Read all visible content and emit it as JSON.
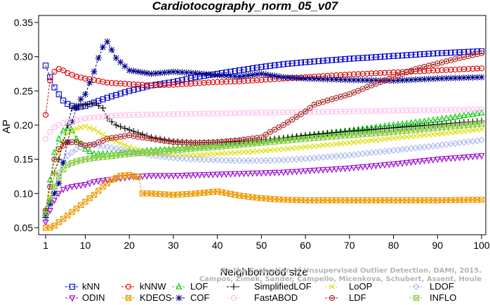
{
  "chart_data": {
    "type": "line",
    "title": "Cardiotocography_norm_05_v07",
    "xlabel": "Neighborhood size",
    "ylabel": "AP",
    "xlim": [
      1,
      100
    ],
    "ylim": [
      0.05,
      0.35
    ],
    "xticks": [
      1,
      10,
      20,
      30,
      40,
      50,
      60,
      70,
      80,
      90,
      100
    ],
    "yticks": [
      0.05,
      0.1,
      0.15,
      0.2,
      0.25,
      0.3,
      0.35
    ],
    "legend_position": "bottom",
    "series": [
      {
        "name": "kNN",
        "color": "#0000cc",
        "marker": "square",
        "line": "dashed",
        "points": [
          [
            1,
            0.287
          ],
          [
            2,
            0.27
          ],
          [
            3,
            0.255
          ],
          [
            4,
            0.245
          ],
          [
            5,
            0.236
          ],
          [
            6,
            0.231
          ],
          [
            7,
            0.228
          ],
          [
            8,
            0.226
          ],
          [
            10,
            0.228
          ],
          [
            12,
            0.233
          ],
          [
            15,
            0.24
          ],
          [
            20,
            0.25
          ],
          [
            25,
            0.258
          ],
          [
            30,
            0.263
          ],
          [
            35,
            0.27
          ],
          [
            40,
            0.275
          ],
          [
            45,
            0.28
          ],
          [
            50,
            0.285
          ],
          [
            55,
            0.289
          ],
          [
            60,
            0.292
          ],
          [
            70,
            0.297
          ],
          [
            80,
            0.301
          ],
          [
            90,
            0.305
          ],
          [
            100,
            0.308
          ]
        ]
      },
      {
        "name": "kNNW",
        "color": "#dd0000",
        "marker": "circle",
        "line": "dashed",
        "points": [
          [
            1,
            0.215
          ],
          [
            2,
            0.265
          ],
          [
            3,
            0.278
          ],
          [
            4,
            0.282
          ],
          [
            5,
            0.28
          ],
          [
            6,
            0.276
          ],
          [
            8,
            0.271
          ],
          [
            10,
            0.268
          ],
          [
            12,
            0.266
          ],
          [
            15,
            0.262
          ],
          [
            20,
            0.26
          ],
          [
            25,
            0.258
          ],
          [
            30,
            0.259
          ],
          [
            35,
            0.261
          ],
          [
            40,
            0.263
          ],
          [
            45,
            0.264
          ],
          [
            50,
            0.266
          ],
          [
            55,
            0.268
          ],
          [
            60,
            0.27
          ],
          [
            70,
            0.274
          ],
          [
            80,
            0.277
          ],
          [
            90,
            0.28
          ],
          [
            100,
            0.283
          ]
        ]
      },
      {
        "name": "LOF",
        "color": "#00cc00",
        "marker": "triangle",
        "line": "dashed",
        "points": [
          [
            1,
            0.075
          ],
          [
            2,
            0.12
          ],
          [
            3,
            0.16
          ],
          [
            4,
            0.18
          ],
          [
            5,
            0.192
          ],
          [
            6,
            0.196
          ],
          [
            7,
            0.192
          ],
          [
            8,
            0.18
          ],
          [
            10,
            0.165
          ],
          [
            12,
            0.158
          ],
          [
            15,
            0.158
          ],
          [
            20,
            0.16
          ],
          [
            25,
            0.163
          ],
          [
            30,
            0.165
          ],
          [
            35,
            0.168
          ],
          [
            40,
            0.17
          ],
          [
            45,
            0.173
          ],
          [
            50,
            0.176
          ],
          [
            55,
            0.18
          ],
          [
            60,
            0.184
          ],
          [
            70,
            0.192
          ],
          [
            80,
            0.2
          ],
          [
            90,
            0.208
          ],
          [
            100,
            0.218
          ]
        ]
      },
      {
        "name": "SimplifiedLOF",
        "color": "#000000",
        "marker": "plus",
        "line": "dashed",
        "points": [
          [
            1,
            0.065
          ],
          [
            2,
            0.09
          ],
          [
            3,
            0.13
          ],
          [
            4,
            0.15
          ],
          [
            5,
            0.175
          ],
          [
            6,
            0.2
          ],
          [
            7,
            0.225
          ],
          [
            8,
            0.228
          ],
          [
            10,
            0.23
          ],
          [
            12,
            0.232
          ],
          [
            14,
            0.225
          ],
          [
            15,
            0.21
          ],
          [
            17,
            0.2
          ],
          [
            20,
            0.193
          ],
          [
            25,
            0.182
          ],
          [
            30,
            0.176
          ],
          [
            35,
            0.174
          ],
          [
            40,
            0.175
          ],
          [
            45,
            0.176
          ],
          [
            50,
            0.178
          ],
          [
            55,
            0.181
          ],
          [
            60,
            0.185
          ],
          [
            70,
            0.191
          ],
          [
            80,
            0.196
          ],
          [
            90,
            0.201
          ],
          [
            100,
            0.206
          ]
        ]
      },
      {
        "name": "LoOP",
        "color": "#dddd00",
        "marker": "x",
        "line": "dashed",
        "points": [
          [
            1,
            0.07
          ],
          [
            2,
            0.095
          ],
          [
            3,
            0.13
          ],
          [
            4,
            0.16
          ],
          [
            5,
            0.175
          ],
          [
            6,
            0.188
          ],
          [
            8,
            0.195
          ],
          [
            10,
            0.198
          ],
          [
            12,
            0.194
          ],
          [
            15,
            0.182
          ],
          [
            20,
            0.168
          ],
          [
            25,
            0.158
          ],
          [
            30,
            0.155
          ],
          [
            35,
            0.156
          ],
          [
            40,
            0.158
          ],
          [
            45,
            0.16
          ],
          [
            50,
            0.162
          ],
          [
            55,
            0.165
          ],
          [
            60,
            0.168
          ],
          [
            70,
            0.174
          ],
          [
            80,
            0.181
          ],
          [
            90,
            0.187
          ],
          [
            100,
            0.194
          ]
        ]
      },
      {
        "name": "LDOF",
        "color": "#aab8ee",
        "marker": "diamond",
        "line": "dashed",
        "points": [
          [
            1,
            0.06
          ],
          [
            2,
            0.085
          ],
          [
            3,
            0.11
          ],
          [
            4,
            0.13
          ],
          [
            5,
            0.145
          ],
          [
            6,
            0.155
          ],
          [
            8,
            0.165
          ],
          [
            10,
            0.17
          ],
          [
            12,
            0.171
          ],
          [
            15,
            0.168
          ],
          [
            20,
            0.162
          ],
          [
            25,
            0.156
          ],
          [
            30,
            0.152
          ],
          [
            35,
            0.15
          ],
          [
            40,
            0.149
          ],
          [
            45,
            0.148
          ],
          [
            50,
            0.148
          ],
          [
            55,
            0.149
          ],
          [
            60,
            0.151
          ],
          [
            70,
            0.156
          ],
          [
            80,
            0.163
          ],
          [
            90,
            0.17
          ],
          [
            100,
            0.178
          ]
        ]
      },
      {
        "name": "ODIN",
        "color": "#9900cc",
        "marker": "triangle-down",
        "line": "dashed",
        "points": [
          [
            1,
            0.058
          ],
          [
            2,
            0.075
          ],
          [
            3,
            0.09
          ],
          [
            4,
            0.1
          ],
          [
            5,
            0.106
          ],
          [
            7,
            0.11
          ],
          [
            10,
            0.113
          ],
          [
            12,
            0.117
          ],
          [
            15,
            0.12
          ],
          [
            20,
            0.124
          ],
          [
            25,
            0.126
          ],
          [
            30,
            0.126
          ],
          [
            35,
            0.127
          ],
          [
            40,
            0.128
          ],
          [
            45,
            0.129
          ],
          [
            50,
            0.13
          ],
          [
            55,
            0.131
          ],
          [
            60,
            0.133
          ],
          [
            70,
            0.137
          ],
          [
            80,
            0.143
          ],
          [
            90,
            0.15
          ],
          [
            100,
            0.155
          ]
        ]
      },
      {
        "name": "KDEOS",
        "color": "#ee9900",
        "marker": "square-x",
        "line": "dashed",
        "points": [
          [
            1,
            0.05
          ],
          [
            2,
            0.05
          ],
          [
            3,
            0.053
          ],
          [
            4,
            0.058
          ],
          [
            5,
            0.063
          ],
          [
            6,
            0.068
          ],
          [
            8,
            0.078
          ],
          [
            10,
            0.088
          ],
          [
            12,
            0.098
          ],
          [
            14,
            0.11
          ],
          [
            16,
            0.12
          ],
          [
            18,
            0.126
          ],
          [
            20,
            0.127
          ],
          [
            22,
            0.124
          ],
          [
            23,
            0.1
          ],
          [
            25,
            0.1
          ],
          [
            30,
            0.098
          ],
          [
            35,
            0.1
          ],
          [
            40,
            0.103
          ],
          [
            45,
            0.097
          ],
          [
            50,
            0.093
          ],
          [
            55,
            0.091
          ],
          [
            60,
            0.09
          ],
          [
            70,
            0.09
          ],
          [
            80,
            0.09
          ],
          [
            90,
            0.09
          ],
          [
            100,
            0.091
          ]
        ]
      },
      {
        "name": "COF",
        "color": "#000088",
        "marker": "asterisk",
        "line": "dashed",
        "points": [
          [
            1,
            0.068
          ],
          [
            2,
            0.085
          ],
          [
            3,
            0.1
          ],
          [
            4,
            0.115
          ],
          [
            5,
            0.145
          ],
          [
            6,
            0.175
          ],
          [
            7,
            0.205
          ],
          [
            8,
            0.225
          ],
          [
            9,
            0.238
          ],
          [
            10,
            0.245
          ],
          [
            11,
            0.262
          ],
          [
            12,
            0.278
          ],
          [
            13,
            0.298
          ],
          [
            14,
            0.314
          ],
          [
            15,
            0.322
          ],
          [
            16,
            0.31
          ],
          [
            17,
            0.298
          ],
          [
            18,
            0.292
          ],
          [
            20,
            0.28
          ],
          [
            25,
            0.275
          ],
          [
            30,
            0.278
          ],
          [
            35,
            0.276
          ],
          [
            40,
            0.273
          ],
          [
            45,
            0.271
          ],
          [
            50,
            0.275
          ],
          [
            55,
            0.27
          ],
          [
            60,
            0.268
          ],
          [
            70,
            0.266
          ],
          [
            80,
            0.265
          ],
          [
            90,
            0.268
          ],
          [
            100,
            0.27
          ]
        ]
      },
      {
        "name": "FastABOD",
        "color": "#ffbbee",
        "marker": "circle",
        "line": "dashed",
        "points": [
          [
            1,
            0.18
          ],
          [
            2,
            0.19
          ],
          [
            3,
            0.197
          ],
          [
            5,
            0.203
          ],
          [
            8,
            0.207
          ],
          [
            10,
            0.21
          ],
          [
            15,
            0.213
          ],
          [
            20,
            0.215
          ],
          [
            30,
            0.216
          ],
          [
            40,
            0.217
          ],
          [
            50,
            0.218
          ],
          [
            60,
            0.219
          ],
          [
            70,
            0.22
          ],
          [
            80,
            0.221
          ],
          [
            90,
            0.222
          ],
          [
            100,
            0.223
          ]
        ]
      },
      {
        "name": "LDF",
        "color": "#aa2222",
        "marker": "circle-filled",
        "line": "dashed",
        "points": [
          [
            1,
            0.075
          ],
          [
            2,
            0.11
          ],
          [
            3,
            0.15
          ],
          [
            4,
            0.165
          ],
          [
            5,
            0.17
          ],
          [
            6,
            0.175
          ],
          [
            8,
            0.175
          ],
          [
            10,
            0.17
          ],
          [
            12,
            0.172
          ],
          [
            15,
            0.18
          ],
          [
            20,
            0.185
          ],
          [
            25,
            0.18
          ],
          [
            30,
            0.175
          ],
          [
            35,
            0.174
          ],
          [
            40,
            0.175
          ],
          [
            45,
            0.178
          ],
          [
            50,
            0.182
          ],
          [
            52,
            0.19
          ],
          [
            55,
            0.2
          ],
          [
            58,
            0.212
          ],
          [
            60,
            0.22
          ],
          [
            62,
            0.23
          ],
          [
            65,
            0.236
          ],
          [
            70,
            0.245
          ],
          [
            75,
            0.258
          ],
          [
            80,
            0.27
          ],
          [
            85,
            0.282
          ],
          [
            90,
            0.29
          ],
          [
            95,
            0.298
          ],
          [
            100,
            0.305
          ]
        ]
      },
      {
        "name": "INFLO",
        "color": "#88cc44",
        "marker": "square-x",
        "line": "dashed",
        "points": [
          [
            1,
            0.07
          ],
          [
            2,
            0.09
          ],
          [
            3,
            0.11
          ],
          [
            4,
            0.125
          ],
          [
            5,
            0.135
          ],
          [
            6,
            0.142
          ],
          [
            8,
            0.147
          ],
          [
            10,
            0.15
          ],
          [
            12,
            0.152
          ],
          [
            15,
            0.154
          ],
          [
            20,
            0.158
          ],
          [
            25,
            0.16
          ],
          [
            30,
            0.163
          ],
          [
            35,
            0.166
          ],
          [
            40,
            0.168
          ],
          [
            45,
            0.171
          ],
          [
            50,
            0.174
          ],
          [
            55,
            0.177
          ],
          [
            60,
            0.18
          ],
          [
            70,
            0.185
          ],
          [
            80,
            0.19
          ],
          [
            90,
            0.196
          ],
          [
            100,
            0.202
          ]
        ]
      }
    ]
  },
  "watermark": "Campos, Zimek, Sander, Campello, Micenkova, Schubert, Assent, Houle",
  "watermark_line1": "On the Evaluation of Unsupervised Outlier Detection. DAMI, 2015."
}
